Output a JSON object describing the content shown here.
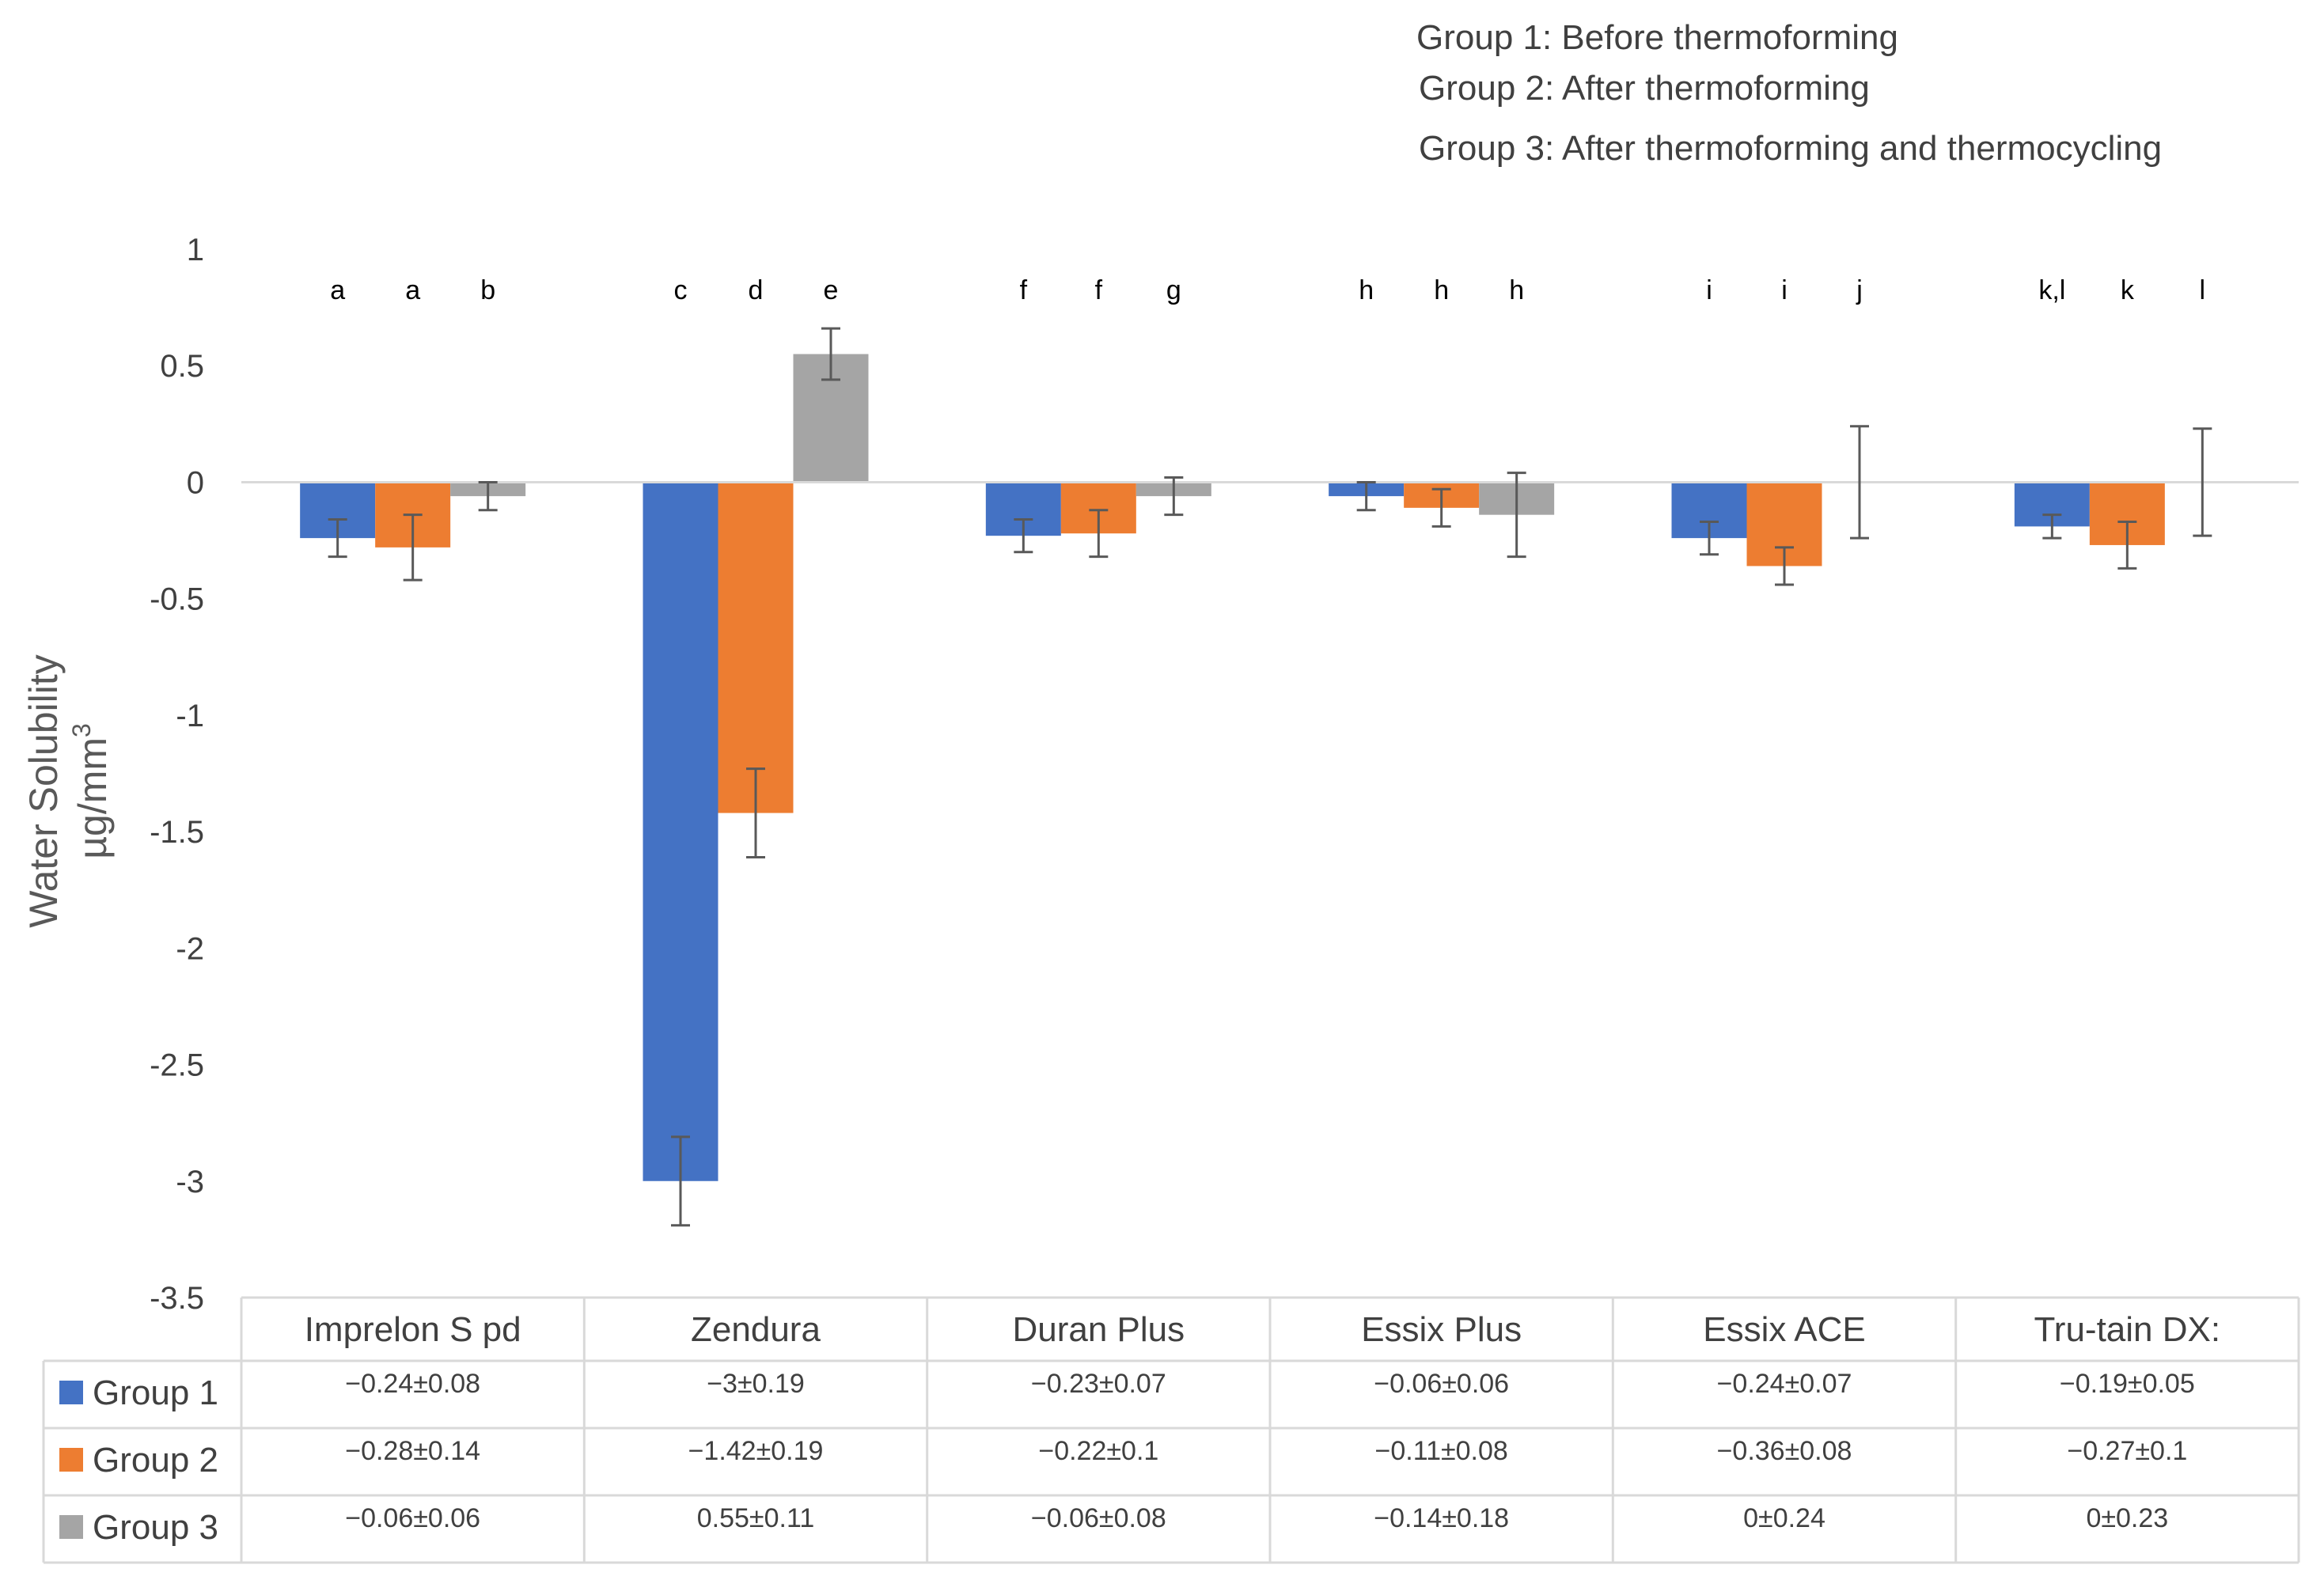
{
  "chart_data": {
    "type": "bar",
    "legend_notes": [
      "Group 1: Before thermoforming",
      "Group 2: After thermoforming",
      "Group 3: After thermoforming and thermocycling"
    ],
    "ylabel_line1": "Water Solubility",
    "ylabel_line2": "µg/mm",
    "ylabel_superscript": "3",
    "ylim": [
      -3.5,
      1
    ],
    "yticks": [
      1,
      0.5,
      0,
      -0.5,
      -1,
      -1.5,
      -2,
      -2.5,
      -3,
      -3.5
    ],
    "ytick_labels": [
      "1",
      "0.5",
      "0",
      "-0.5",
      "-1",
      "-1.5",
      "-2",
      "-2.5",
      "-3",
      "-3.5"
    ],
    "categories": [
      "Imprelon S pd",
      "Zendura",
      "Duran Plus",
      "Essix Plus",
      "Essix ACE",
      "Tru-tain DX:"
    ],
    "series": [
      {
        "name": "Group 1",
        "color": "#4472C4",
        "values": [
          -0.24,
          -3,
          -0.23,
          -0.06,
          -0.24,
          -0.19
        ],
        "errors": [
          0.08,
          0.19,
          0.07,
          0.06,
          0.07,
          0.05
        ],
        "labels": [
          "−0.24±0.08",
          "−3±0.19",
          "−0.23±0.07",
          "−0.06±0.06",
          "−0.24±0.07",
          "−0.19±0.05"
        ]
      },
      {
        "name": "Group 2",
        "color": "#ED7D31",
        "values": [
          -0.28,
          -1.42,
          -0.22,
          -0.11,
          -0.36,
          -0.27
        ],
        "errors": [
          0.14,
          0.19,
          0.1,
          0.08,
          0.08,
          0.1
        ],
        "labels": [
          "−0.28±0.14",
          "−1.42±0.19",
          "−0.22±0.1",
          "−0.11±0.08",
          "−0.36±0.08",
          "−0.27±0.1"
        ]
      },
      {
        "name": "Group 3",
        "color": "#A5A5A5",
        "values": [
          -0.06,
          0.55,
          -0.06,
          -0.14,
          0,
          0
        ],
        "errors": [
          0.06,
          0.11,
          0.08,
          0.18,
          0.24,
          0.23
        ],
        "labels": [
          "−0.06±0.06",
          "0.55±0.11",
          "−0.06±0.08",
          "−0.14±0.18",
          "0±0.24",
          "0±0.23"
        ]
      }
    ],
    "significance_letters": [
      [
        "a",
        "a",
        "b"
      ],
      [
        "c",
        "d",
        "e"
      ],
      [
        "f",
        "f",
        "g"
      ],
      [
        "h",
        "h",
        "h"
      ],
      [
        "i",
        "i",
        "j"
      ],
      [
        "k,l",
        "k",
        "l"
      ]
    ],
    "colors": {
      "axis": "#D9D9D9",
      "grid_table": "#D9D9D9",
      "errorbar": "#595959"
    }
  }
}
